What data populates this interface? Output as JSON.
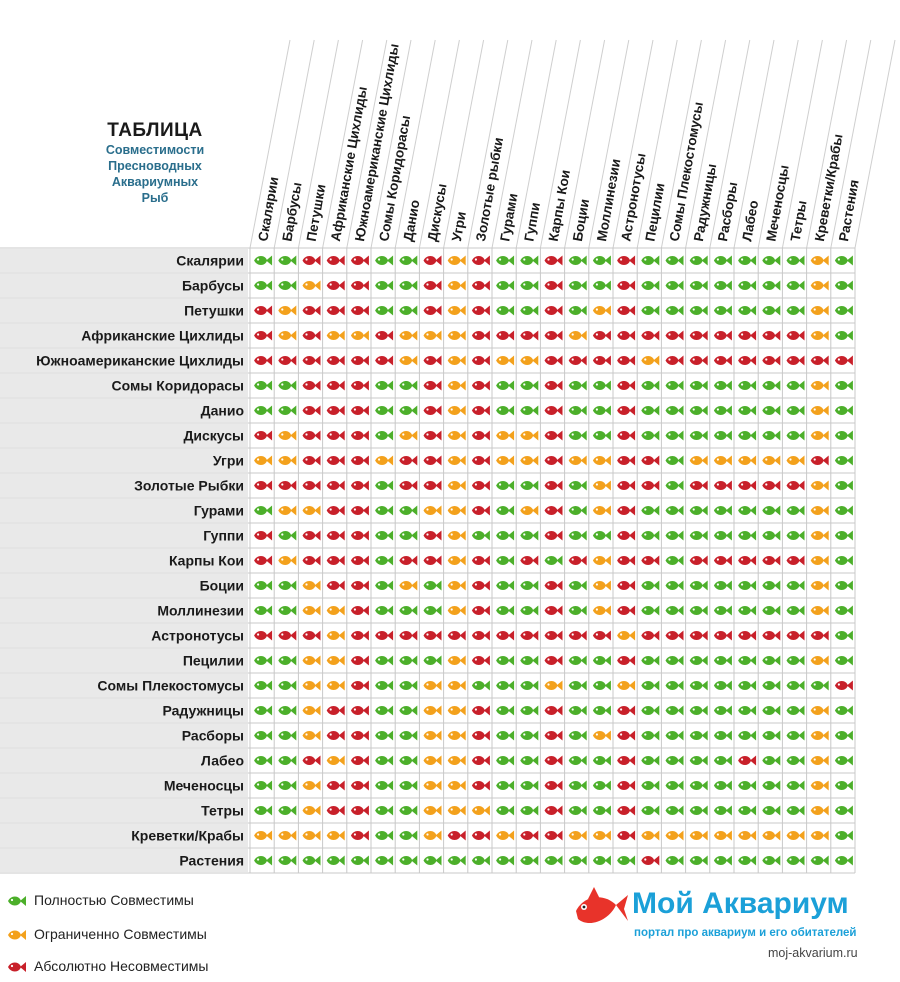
{
  "title": "ТАБЛИЦА",
  "subtitle_lines": [
    "Совместимости",
    "Пресноводных",
    "Аквариумных",
    "Рыб"
  ],
  "chart_data": {
    "type": "table",
    "title": "ТАБЛИЦА Совместимости Пресноводных Аквариумных Рыб",
    "columns": [
      "Скалярии",
      "Барбусы",
      "Петушки",
      "Африканские Цихлиды",
      "Южноамериканские Цихлиды",
      "Сомы Коридорасы",
      "Данио",
      "Дискусы",
      "Угри",
      "Золотые рыбки",
      "Гурами",
      "Гуппи",
      "Карпы Кои",
      "Боции",
      "Моллинезии",
      "Астронотусы",
      "Пецилии",
      "Сомы Плекостомусы",
      "Радужницы",
      "Расборы",
      "Лабео",
      "Меченосцы",
      "Тетры",
      "Креветки/Крабы",
      "Растения"
    ],
    "rows": [
      "Скалярии",
      "Барбусы",
      "Петушки",
      "Африканские Цихлиды",
      "Южноамериканские Цихлиды",
      "Сомы Коридорасы",
      "Данио",
      "Дискусы",
      "Угри",
      "Золотые Рыбки",
      "Гурами",
      "Гуппи",
      "Карпы Кои",
      "Боции",
      "Моллинезии",
      "Астронотусы",
      "Пецилии",
      "Сомы Плекостомусы",
      "Радужницы",
      "Расборы",
      "Лабео",
      "Меченосцы",
      "Тетры",
      "Креветки/Крабы",
      "Растения"
    ],
    "values_legend": {
      "G": "Полностью Совместимы",
      "O": "Ограниченно Совместимы",
      "R": "Абсолютно Несовместимы"
    },
    "colors": {
      "G": "#4caf2a",
      "O": "#f3a11c",
      "R": "#c8202a"
    },
    "cells": [
      "GGRRRGGRORGGRGGRGGGGGGGOG",
      "GGORRGGRORGGRGGRGGGGGGGOG",
      "RORRRGGRORGGRGORGGGGGGGOG",
      "ROROOROOORRRRORRRRRRRRROG",
      "RRRRRROROROORRRRORRRRRRRR",
      "GGRRRGGRORGGRGGRGGGGGGGOG",
      "GGRRRGGRORGGRGGRGGGGGGGOG",
      "RORRRGOROROORGGRGGGGGGGOG",
      "OORRRORROROOROORRGOOOOORG",
      "RRRRRGRRORGGRGORRGRRRRROG",
      "GOORRGGOORGORGORGGGGGGGOG",
      "RGRRRGGROGGGRGGRGGGGGGGOG",
      "RORRRGRRORGRGRORRGRRRRROG",
      "GGORRGOGORGGRGORGGGGGGGOG",
      "GGOORGGGORGGRGORGGGGGGGOG",
      "RRRORRRRRRRRRRRORRRRRRRRG",
      "GGOORGGGORGGRGGRGGGGGGGOG",
      "GGOORGGOOGGGOGGOGGGGGGGGR",
      "GGORRGGOORGGRGGRGGGGGGGOG",
      "GGORRGGOORGGRGORGGGGGGGOG",
      "GGRORGGOORGGRGGRGGGGRGGOG",
      "GGORRGGOORGGRGGRGGGGGGGOG",
      "GGORRGGOOOGGRGGRGGGGGGGOG",
      "OOOORGGORRORROOROOOOOOOOG",
      "GGGGGGGGGGGGGGGGRGGGGGGGG"
    ]
  },
  "legend": [
    {
      "key": "G",
      "label": "Полностью Совместимы"
    },
    {
      "key": "O",
      "label": "Ограниченно  Совместимы"
    },
    {
      "key": "R",
      "label": "Абсолютно Несовместимы"
    }
  ],
  "brand": {
    "name": "Мой Аквариум",
    "tagline": "портал про аквариум и его обитателей",
    "url": "moj-akvarium.ru"
  }
}
